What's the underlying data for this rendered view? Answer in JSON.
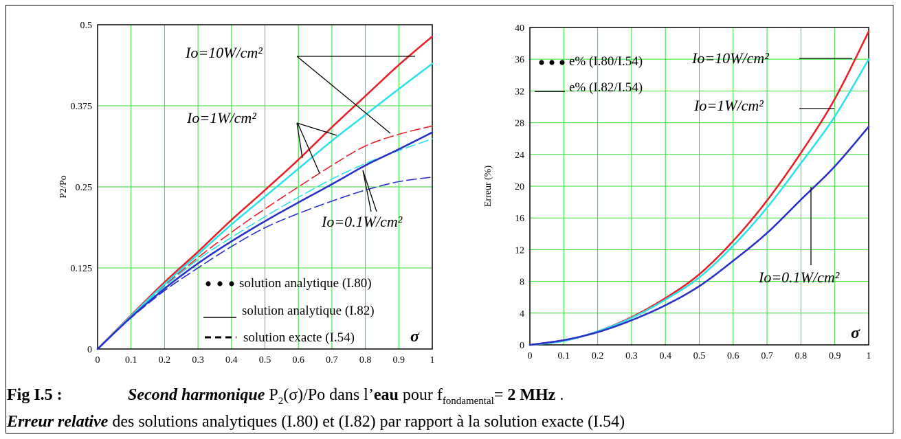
{
  "chart_data": [
    {
      "type": "line",
      "ylabel": "P2/Po",
      "xlabel": "",
      "x_axis_symbol": "σ",
      "xlim": [
        0,
        1
      ],
      "ylim": [
        0,
        0.5
      ],
      "x_ticks": [
        "0",
        "0.1",
        "0.2",
        "0.3",
        "0.4",
        "0.5",
        "0.6",
        "0.7",
        "0.8",
        "0.9",
        "1"
      ],
      "y_ticks": [
        "0",
        "0.125",
        "0.25",
        "0.375",
        "0.5"
      ],
      "grid": true,
      "annotations": [
        "Io=10W/cm²",
        "Io=1W/cm²",
        "Io=0.1W/cm²"
      ],
      "legend": [
        {
          "symbol": "● ● ●",
          "label": "solution analytique (I.80)"
        },
        {
          "symbol": "____",
          "label": "solution analytique (I.82)"
        },
        {
          "symbol": "- - -",
          "label": "solution exacte (I.54)"
        }
      ],
      "series": [
        {
          "style": "solid",
          "color": "#e8202a",
          "group": "10",
          "x": [
            0,
            0.1,
            0.2,
            0.3,
            0.4,
            0.5,
            0.6,
            0.7,
            0.8,
            0.9,
            1
          ],
          "y": [
            0,
            0.052,
            0.103,
            0.15,
            0.199,
            0.245,
            0.292,
            0.342,
            0.39,
            0.438,
            0.482
          ]
        },
        {
          "style": "dashed",
          "color": "#e8202a",
          "group": "10",
          "x": [
            0,
            0.1,
            0.2,
            0.3,
            0.4,
            0.5,
            0.6,
            0.7,
            0.8,
            0.9,
            1
          ],
          "y": [
            0,
            0.051,
            0.098,
            0.141,
            0.18,
            0.216,
            0.25,
            0.283,
            0.313,
            0.331,
            0.344
          ]
        },
        {
          "style": "solid",
          "color": "#30e0e8",
          "group": "1",
          "x": [
            0,
            0.1,
            0.2,
            0.3,
            0.4,
            0.5,
            0.6,
            0.7,
            0.8,
            0.9,
            1
          ],
          "y": [
            0,
            0.051,
            0.1,
            0.146,
            0.192,
            0.235,
            0.278,
            0.321,
            0.361,
            0.401,
            0.44
          ]
        },
        {
          "style": "dashed",
          "color": "#30e0e8",
          "group": "1",
          "x": [
            0,
            0.1,
            0.2,
            0.3,
            0.4,
            0.5,
            0.6,
            0.7,
            0.8,
            0.9,
            1
          ],
          "y": [
            0,
            0.05,
            0.096,
            0.138,
            0.172,
            0.204,
            0.234,
            0.262,
            0.286,
            0.306,
            0.324
          ]
        },
        {
          "style": "solid",
          "color": "#2a30c8",
          "group": "0.1",
          "x": [
            0,
            0.1,
            0.2,
            0.3,
            0.4,
            0.5,
            0.6,
            0.7,
            0.8,
            0.9,
            1
          ],
          "y": [
            0,
            0.049,
            0.093,
            0.132,
            0.166,
            0.197,
            0.226,
            0.254,
            0.283,
            0.308,
            0.334
          ]
        },
        {
          "style": "dashed",
          "color": "#2a30c8",
          "group": "0.1",
          "x": [
            0,
            0.1,
            0.2,
            0.3,
            0.4,
            0.5,
            0.6,
            0.7,
            0.8,
            0.9,
            1
          ],
          "y": [
            0,
            0.048,
            0.09,
            0.125,
            0.158,
            0.187,
            0.209,
            0.228,
            0.245,
            0.258,
            0.265
          ]
        }
      ]
    },
    {
      "type": "line",
      "ylabel": "Erreur (%)",
      "xlabel": "",
      "x_axis_symbol": "σ",
      "xlim": [
        0,
        1
      ],
      "ylim": [
        0,
        40
      ],
      "x_ticks": [
        "0",
        "0.1",
        "0.2",
        "0.3",
        "0.4",
        "0.5",
        "0.6",
        "0.7",
        "0.8",
        "0.9",
        "1"
      ],
      "y_ticks": [
        "0",
        "4",
        "8",
        "12",
        "16",
        "20",
        "24",
        "28",
        "32",
        "36",
        "40"
      ],
      "grid": true,
      "annotations": [
        "Io=10W/cm²",
        "Io=1W/cm²",
        "Io=0.1W/cm²"
      ],
      "legend": [
        {
          "symbol": "● ● ●",
          "label": "e% (I.80/I.54)"
        },
        {
          "symbol": "____",
          "label": "e% (I.82/I.54)"
        }
      ],
      "series": [
        {
          "style": "solid",
          "color": "#e8202a",
          "group": "10",
          "x": [
            0,
            0.1,
            0.2,
            0.3,
            0.4,
            0.5,
            0.6,
            0.7,
            0.8,
            0.9,
            1
          ],
          "y": [
            0,
            0.5,
            1.7,
            3.5,
            5.9,
            8.9,
            13.1,
            18.2,
            24.2,
            31.0,
            39.5
          ]
        },
        {
          "style": "solid",
          "color": "#30e0e8",
          "group": "1",
          "x": [
            0,
            0.1,
            0.2,
            0.3,
            0.4,
            0.5,
            0.6,
            0.7,
            0.8,
            0.9,
            1
          ],
          "y": [
            0,
            0.5,
            1.7,
            3.4,
            5.7,
            8.5,
            12.5,
            17.3,
            22.9,
            28.8,
            36.0
          ]
        },
        {
          "style": "solid",
          "color": "#2a30c8",
          "group": "0.1",
          "x": [
            0,
            0.1,
            0.2,
            0.3,
            0.4,
            0.5,
            0.6,
            0.7,
            0.8,
            0.9,
            1
          ],
          "y": [
            0,
            0.6,
            1.6,
            3.1,
            5.0,
            7.4,
            10.6,
            14.1,
            18.3,
            22.5,
            27.5
          ]
        }
      ]
    }
  ],
  "caption": {
    "fig_label": "Fig I.5 :",
    "line1_italic": "Second harmonique",
    "line1_p": "P",
    "line1_sub": "2",
    "line1_rest": "(σ)/Po dans l’",
    "line1_bold": "eau",
    "line1_pour": " pour f",
    "line1_sub2": "fondamental",
    "line1_eq": "= ",
    "line1_freq": "2 MHz",
    "line1_end": " .",
    "line2_italic": "Erreur relative",
    "line2_rest": " des solutions analytiques (I.80) et (I.82) par rapport à la solution exacte (I.54)"
  }
}
